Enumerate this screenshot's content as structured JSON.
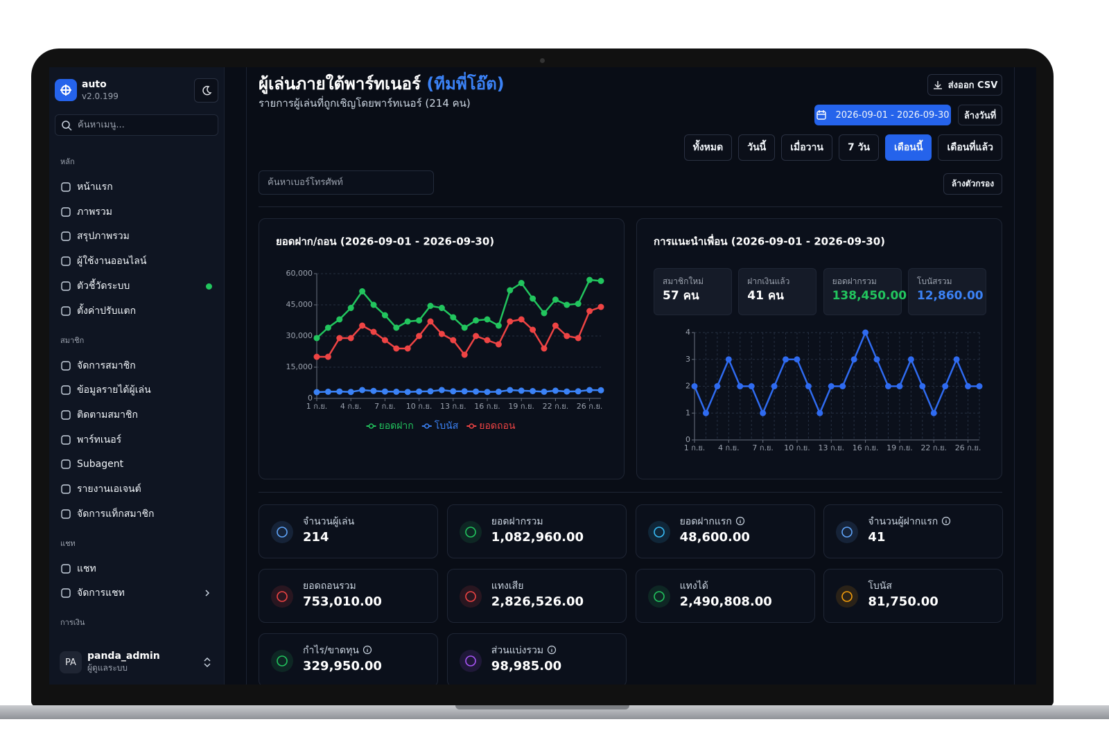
{
  "sidebar": {
    "app_name": "auto",
    "version": "v2.0.199",
    "search_placeholder": "ค้นหาเมนู...",
    "sections": [
      {
        "title": "หลัก",
        "items": [
          "หน้าแรก",
          "ภาพรวม",
          "สรุปภาพรวม",
          "ผู้ใช้งานออนไลน์",
          "ตัวชี้วัดระบบ",
          "ตั้งค่าปรับแตก"
        ]
      },
      {
        "title": "สมาชิก",
        "items": [
          "จัดการสมาชิก",
          "ข้อมูลรายได้ผู้เล่น",
          "ติดตามสมาชิก",
          "พาร์ทเนอร์",
          "Subagent",
          "รายงานเอเจนต์",
          "จัดการแท็กสมาชิก"
        ]
      },
      {
        "title": "แชท",
        "items": [
          "แชท",
          "จัดการแชท"
        ]
      },
      {
        "title": "การเงิน"
      }
    ],
    "user": {
      "initials": "PA",
      "name": "panda_admin",
      "role": "ผู้ดูแลระบบ"
    }
  },
  "header": {
    "title": "ผู้เล่นภายใต้พาร์ทเนอร์",
    "title_highlight": "(ทีมพี่โอ๊ต)",
    "subtitle": "รายการผู้เล่นที่ถูกเชิญโดยพาร์ทเนอร์ (214 คน)",
    "export_button": "ส่งออก CSV",
    "date_range": "2026-09-01 - 2026-09-30",
    "clear_date": "ล้างวันที่",
    "periods": [
      "ทั้งหมด",
      "วันนี้",
      "เมื่อวาน",
      "7 วัน",
      "เดือนนี้",
      "เดือนที่แล้ว"
    ],
    "active_period": 4,
    "phone_search_placeholder": "ค้นหาเบอร์โทรศัพท์",
    "clear_filters": "ล้างตัวกรอง"
  },
  "chart_data": [
    {
      "type": "line",
      "title": "ยอดฝาก/ถอน (2026-09-01 - 2026-09-30)",
      "categories": [
        "1 ก.ย.",
        null,
        null,
        "4 ก.ย.",
        null,
        null,
        "7 ก.ย.",
        null,
        null,
        "10 ก.ย.",
        null,
        null,
        "13 ก.ย.",
        null,
        null,
        "16 ก.ย.",
        null,
        null,
        "19 ก.ย.",
        null,
        null,
        "22 ก.ย.",
        null,
        null,
        "26 ก.ย.",
        null
      ],
      "series": [
        {
          "name": "ยอดฝาก",
          "color": "#22c55e",
          "values": [
            29000,
            34000,
            38000,
            43500,
            51500,
            45000,
            40000,
            34000,
            37000,
            37500,
            44500,
            43500,
            39000,
            34000,
            37500,
            38000,
            35000,
            52000,
            55500,
            48000,
            41000,
            47500,
            45000,
            45500,
            57000,
            56500
          ]
        },
        {
          "name": "โบนัส",
          "color": "#3b82f6",
          "values": [
            3000,
            3200,
            3300,
            3100,
            4000,
            3600,
            3300,
            3200,
            3100,
            3300,
            3400,
            4000,
            3400,
            3400,
            3300,
            3100,
            3200,
            4000,
            3700,
            3500,
            3200,
            3700,
            3300,
            3400,
            4000,
            3900
          ]
        },
        {
          "name": "ยอดถอน",
          "color": "#ef4444",
          "values": [
            20000,
            20000,
            29000,
            29000,
            35000,
            32000,
            28000,
            24000,
            24000,
            30000,
            37000,
            31000,
            28000,
            21000,
            30000,
            28000,
            26000,
            37000,
            38000,
            33000,
            24000,
            35000,
            30000,
            29000,
            42000,
            44000
          ]
        }
      ],
      "ylim": [
        0,
        60000
      ],
      "yticks": [
        0,
        {
          "value": 15000,
          "label": "15,000"
        },
        {
          "value": 30000,
          "label": "30,000"
        },
        {
          "value": 45000,
          "label": "45,000"
        },
        {
          "value": 60000,
          "label": "60,000"
        }
      ],
      "grid": true,
      "legend": "bottom"
    },
    {
      "type": "line",
      "title": "การแนะนำเพื่อน (2026-09-01 - 2026-09-30)",
      "categories": [
        "1 ก.ย.",
        null,
        null,
        "4 ก.ย.",
        null,
        null,
        "7 ก.ย.",
        null,
        null,
        "10 ก.ย.",
        null,
        null,
        "13 ก.ย.",
        null,
        null,
        "16 ก.ย.",
        null,
        null,
        "19 ก.ย.",
        null,
        null,
        "22 ก.ย.",
        null,
        null,
        "26 ก.ย.",
        null
      ],
      "series": [
        {
          "color": "#2f6bf0",
          "values": [
            2,
            1,
            2,
            3,
            2,
            2,
            1,
            2,
            3,
            3,
            2,
            1,
            2,
            2,
            3,
            4,
            3,
            2,
            2,
            3,
            2,
            1,
            2,
            3,
            2,
            2
          ]
        }
      ],
      "ylim": [
        0,
        4
      ],
      "yticks": [
        0,
        1,
        2,
        3,
        4
      ],
      "grid": true,
      "xgrid": true
    }
  ],
  "referral_stats": [
    {
      "label": "สมาชิกใหม่",
      "value": "57 คน",
      "color": "#ffffff"
    },
    {
      "label": "ฝากเงินแล้ว",
      "value": "41 คน",
      "color": "#ffffff"
    },
    {
      "label": "ยอดฝากรวม",
      "value": "138,450.00",
      "color": "#22c55e"
    },
    {
      "label": "โบนัสรวม",
      "value": "12,860.00",
      "color": "#3b82f6"
    }
  ],
  "cards": [
    {
      "label": "จำนวนผู้เล่น",
      "value": "214",
      "color": "#60a5fa",
      "info": false
    },
    {
      "label": "ยอดฝากรวม",
      "value": "1,082,960.00",
      "color": "#22c55e",
      "info": false
    },
    {
      "label": "ยอดฝากแรก",
      "value": "48,600.00",
      "color": "#38bdf8",
      "info": true
    },
    {
      "label": "จำนวนผู้ฝากแรก",
      "value": "41",
      "color": "#60a5fa",
      "info": true
    },
    {
      "label": "ยอดถอนรวม",
      "value": "753,010.00",
      "color": "#ef4444",
      "info": false
    },
    {
      "label": "แทงเสีย",
      "value": "2,826,526.00",
      "color": "#ef4444",
      "info": false
    },
    {
      "label": "แทงได้",
      "value": "2,490,808.00",
      "color": "#22c55e",
      "info": false
    },
    {
      "label": "โบนัส",
      "value": "81,750.00",
      "color": "#f59e0b",
      "info": false
    },
    {
      "label": "กำไร/ขาดทุน",
      "value": "329,950.00",
      "color": "#22c55e",
      "info": true
    },
    {
      "label": "ส่วนแบ่งรวม",
      "value": "98,985.00",
      "color": "#a855f7",
      "info": true
    }
  ]
}
